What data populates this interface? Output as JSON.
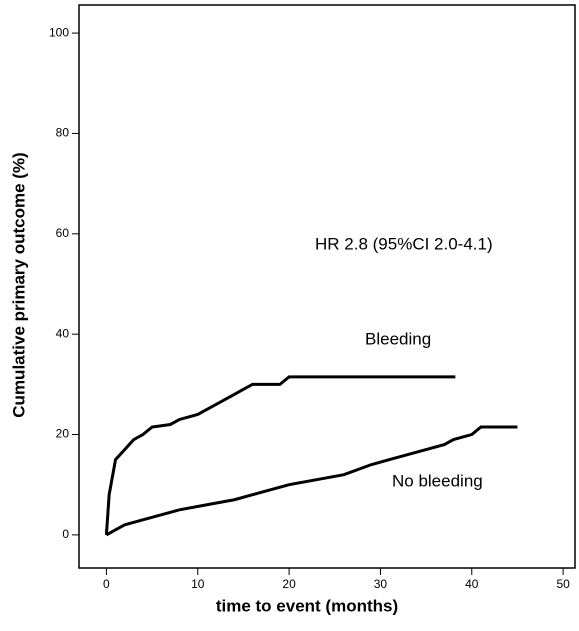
{
  "chart_data": {
    "type": "line",
    "x_label": "time to event (months)",
    "y_label": "Cumulative primary outcome (%)",
    "annotation": "HR 2.8 (95%CI 2.0-4.1)",
    "xlim": [
      -3,
      51.3
    ],
    "ylim": [
      -6.6,
      105.6
    ],
    "xticks": [
      0,
      10,
      20,
      30,
      40,
      50
    ],
    "yticks": [
      0,
      20,
      40,
      60,
      80,
      100
    ],
    "series": [
      {
        "name": "Bleeding",
        "color": "#000000",
        "x": [
          0,
          0.3,
          1,
          2,
          3,
          4,
          5,
          7,
          8,
          10,
          11,
          13,
          14,
          15,
          16,
          19,
          20,
          38.2
        ],
        "values": [
          0,
          8,
          15,
          17,
          19,
          20,
          21.5,
          22,
          23,
          24,
          25,
          27,
          28,
          29,
          30,
          30,
          31.5,
          31.5
        ]
      },
      {
        "name": "No bleeding",
        "color": "#000000",
        "x": [
          0,
          1,
          2,
          4,
          6,
          8,
          11,
          14,
          16,
          18,
          20,
          23,
          26,
          29,
          31,
          33,
          35,
          37,
          38,
          40,
          41,
          45
        ],
        "values": [
          0,
          1,
          2,
          3,
          4,
          5,
          6,
          7,
          8,
          9,
          10,
          11,
          12,
          14,
          15,
          16,
          17,
          18,
          19,
          20,
          21.5,
          21.5
        ]
      }
    ]
  }
}
